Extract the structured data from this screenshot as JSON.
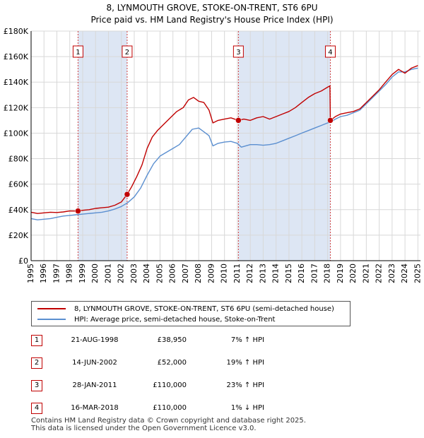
{
  "header": {
    "title_line1": "8, LYNMOUTH GROVE, STOKE-ON-TRENT, ST6 6PU",
    "title_line2": "Price paid vs. HM Land Registry's House Price Index (HPI)"
  },
  "colors": {
    "property": "#c00000",
    "hpi": "#5b8fd0",
    "shade": "#dde6f4",
    "grid": "#d8d8d8",
    "marker_line": "#d04040"
  },
  "legend": {
    "property_label": "8, LYNMOUTH GROVE, STOKE-ON-TRENT, ST6 6PU (semi-detached house)",
    "hpi_label": "HPI: Average price, semi-detached house, Stoke-on-Trent"
  },
  "sales": [
    {
      "num": "1",
      "date": "21-AUG-1998",
      "price": "£38,950",
      "hpi": "7% ↑ HPI"
    },
    {
      "num": "2",
      "date": "14-JUN-2002",
      "price": "£52,000",
      "hpi": "19% ↑ HPI"
    },
    {
      "num": "3",
      "date": "28-JAN-2011",
      "price": "£110,000",
      "hpi": "23% ↑ HPI"
    },
    {
      "num": "4",
      "date": "16-MAR-2018",
      "price": "£110,000",
      "hpi": "1% ↓ HPI"
    }
  ],
  "footer": {
    "line1": "Contains HM Land Registry data © Crown copyright and database right 2025.",
    "line2": "This data is licensed under the Open Government Licence v3.0."
  },
  "chart_data": {
    "type": "line",
    "title": "Price paid vs. HM Land Registry's House Price Index (HPI)",
    "xlim": [
      1995.0,
      2025.2
    ],
    "ylim": [
      0,
      180000
    ],
    "y_ticks": [
      0,
      20000,
      40000,
      60000,
      80000,
      100000,
      120000,
      140000,
      160000,
      180000
    ],
    "y_tick_labels": [
      "£0",
      "£20K",
      "£40K",
      "£60K",
      "£80K",
      "£100K",
      "£120K",
      "£140K",
      "£160K",
      "£180K"
    ],
    "x_ticks": [
      1995,
      1996,
      1997,
      1998,
      1999,
      2000,
      2001,
      2002,
      2003,
      2004,
      2005,
      2006,
      2007,
      2008,
      2009,
      2010,
      2011,
      2012,
      2013,
      2014,
      2015,
      2016,
      2017,
      2018,
      2019,
      2020,
      2021,
      2022,
      2023,
      2024,
      2025
    ],
    "x_tick_labels": [
      "1995",
      "1996",
      "1997",
      "1998",
      "1999",
      "2000",
      "2001",
      "2002",
      "2003",
      "2004",
      "2005",
      "2006",
      "2007",
      "2008",
      "2009",
      "2010",
      "2011",
      "2012",
      "2013",
      "2014",
      "2015",
      "2016",
      "2017",
      "2018",
      "2019",
      "2020",
      "2021",
      "2022",
      "2023",
      "2024",
      "2025"
    ],
    "shaded_ranges": [
      [
        1998.64,
        2002.45
      ],
      [
        2011.08,
        2018.21
      ]
    ],
    "sale_markers": [
      {
        "label": "1",
        "x": 1998.64,
        "y": 38950
      },
      {
        "label": "2",
        "x": 2002.45,
        "y": 52000
      },
      {
        "label": "3",
        "x": 2011.08,
        "y": 110000
      },
      {
        "label": "4",
        "x": 2018.21,
        "y": 110000
      }
    ],
    "series": [
      {
        "name": "8, LYNMOUTH GROVE, STOKE-ON-TRENT, ST6 6PU (semi-detached house)",
        "x": [
          1995.0,
          1995.5,
          1996.0,
          1996.5,
          1997.0,
          1997.5,
          1998.0,
          1998.64,
          1999.0,
          1999.5,
          2000.0,
          2000.5,
          2001.0,
          2001.5,
          2002.0,
          2002.45,
          2002.8,
          2003.2,
          2003.6,
          2004.0,
          2004.4,
          2004.8,
          2005.3,
          2005.8,
          2006.3,
          2006.8,
          2007.2,
          2007.6,
          2008.0,
          2008.4,
          2008.8,
          2009.1,
          2009.5,
          2010.0,
          2010.5,
          2011.08,
          2011.5,
          2012.0,
          2012.5,
          2013.0,
          2013.5,
          2014.0,
          2014.5,
          2015.0,
          2015.5,
          2016.0,
          2016.5,
          2017.0,
          2017.5,
          2018.0,
          2018.18,
          2018.21,
          2018.6,
          2019.0,
          2019.5,
          2020.0,
          2020.5,
          2021.0,
          2021.5,
          2022.0,
          2022.5,
          2023.0,
          2023.5,
          2024.0,
          2024.5,
          2025.0
        ],
        "y": [
          38000,
          37000,
          37500,
          38000,
          37800,
          38200,
          39000,
          38950,
          39500,
          40000,
          41000,
          41500,
          42000,
          43500,
          46000,
          52000,
          58000,
          66000,
          75000,
          88000,
          97000,
          102000,
          107000,
          112000,
          117000,
          120000,
          126000,
          128000,
          125000,
          124000,
          118000,
          108000,
          110000,
          111000,
          112000,
          110000,
          111000,
          110000,
          112000,
          113000,
          111000,
          113000,
          115000,
          117000,
          120000,
          124000,
          128000,
          131000,
          133000,
          136000,
          137000,
          110000,
          113000,
          115000,
          116000,
          117000,
          119000,
          124000,
          129000,
          134000,
          140000,
          146000,
          150000,
          147000,
          151000,
          153000
        ]
      },
      {
        "name": "HPI: Average price, semi-detached house, Stoke-on-Trent",
        "x": [
          1995.0,
          1995.5,
          1996.0,
          1996.5,
          1997.0,
          1997.5,
          1998.0,
          1998.5,
          1999.0,
          1999.5,
          2000.0,
          2000.5,
          2001.0,
          2001.5,
          2002.0,
          2002.5,
          2003.0,
          2003.5,
          2004.0,
          2004.5,
          2005.0,
          2005.5,
          2006.0,
          2006.5,
          2007.0,
          2007.5,
          2008.0,
          2008.4,
          2008.8,
          2009.1,
          2009.5,
          2010.0,
          2010.5,
          2011.0,
          2011.3,
          2012.0,
          2012.5,
          2013.0,
          2013.5,
          2014.0,
          2014.5,
          2015.0,
          2015.5,
          2016.0,
          2016.5,
          2017.0,
          2017.5,
          2018.0,
          2018.3,
          2018.6,
          2019.0,
          2019.5,
          2020.0,
          2020.5,
          2021.0,
          2021.5,
          2022.0,
          2022.5,
          2023.0,
          2023.5,
          2024.0,
          2024.5,
          2025.0
        ],
        "y": [
          33000,
          32000,
          32500,
          33000,
          34000,
          35000,
          35500,
          36000,
          36500,
          37000,
          37500,
          38000,
          39000,
          40500,
          42500,
          45500,
          50000,
          57000,
          67000,
          76000,
          82000,
          85000,
          88000,
          91000,
          97000,
          103000,
          104000,
          101000,
          98000,
          90000,
          92000,
          93000,
          93500,
          92000,
          89000,
          91000,
          91000,
          90500,
          91000,
          92000,
          94000,
          96000,
          98000,
          100000,
          102000,
          104000,
          106000,
          108000,
          109000,
          111000,
          113000,
          114000,
          116000,
          118000,
          123000,
          128000,
          133000,
          138000,
          144000,
          148000,
          148000,
          150000,
          151000
        ]
      }
    ]
  }
}
